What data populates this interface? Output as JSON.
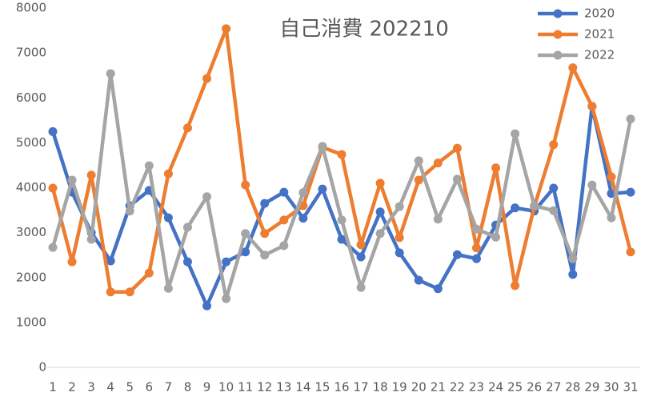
{
  "chart_data": {
    "type": "line",
    "title": "自己消費 202210",
    "categories": [
      "1",
      "2",
      "3",
      "4",
      "5",
      "6",
      "7",
      "8",
      "9",
      "10",
      "11",
      "12",
      "13",
      "14",
      "15",
      "16",
      "17",
      "18",
      "19",
      "20",
      "21",
      "22",
      "23",
      "24",
      "25",
      "26",
      "27",
      "28",
      "29",
      "30",
      "31"
    ],
    "ylim": [
      0,
      8000
    ],
    "yticks": [
      0,
      1000,
      2000,
      3000,
      4000,
      5000,
      6000,
      7000,
      8000
    ],
    "grid": false,
    "legend": "top-right",
    "series": [
      {
        "name": "2020",
        "color": "#4472c4",
        "values": [
          5250,
          3900,
          3000,
          2370,
          3600,
          3940,
          3330,
          2350,
          1370,
          2350,
          2570,
          3650,
          3900,
          3320,
          3970,
          2850,
          2460,
          3460,
          2550,
          1940,
          1750,
          2510,
          2420,
          3170,
          3550,
          3480,
          3990,
          2070,
          5810,
          3870,
          3900
        ]
      },
      {
        "name": "2021",
        "color": "#ed7d31",
        "values": [
          3990,
          2350,
          4280,
          1680,
          1680,
          2100,
          4310,
          5330,
          6430,
          7540,
          4060,
          2980,
          3280,
          3600,
          4900,
          4740,
          2730,
          4100,
          2890,
          4170,
          4550,
          4880,
          2660,
          4440,
          1820,
          3580,
          4960,
          6670,
          5810,
          4240,
          2570
        ]
      },
      {
        "name": "2022",
        "color": "#a5a5a5",
        "values": [
          2670,
          4170,
          2850,
          6540,
          3480,
          4490,
          1760,
          3120,
          3800,
          1530,
          2980,
          2500,
          2710,
          3890,
          4920,
          3280,
          1780,
          2980,
          3580,
          4600,
          3300,
          4190,
          3080,
          2900,
          5200,
          3600,
          3490,
          2420,
          4060,
          3330,
          5530
        ]
      }
    ]
  }
}
